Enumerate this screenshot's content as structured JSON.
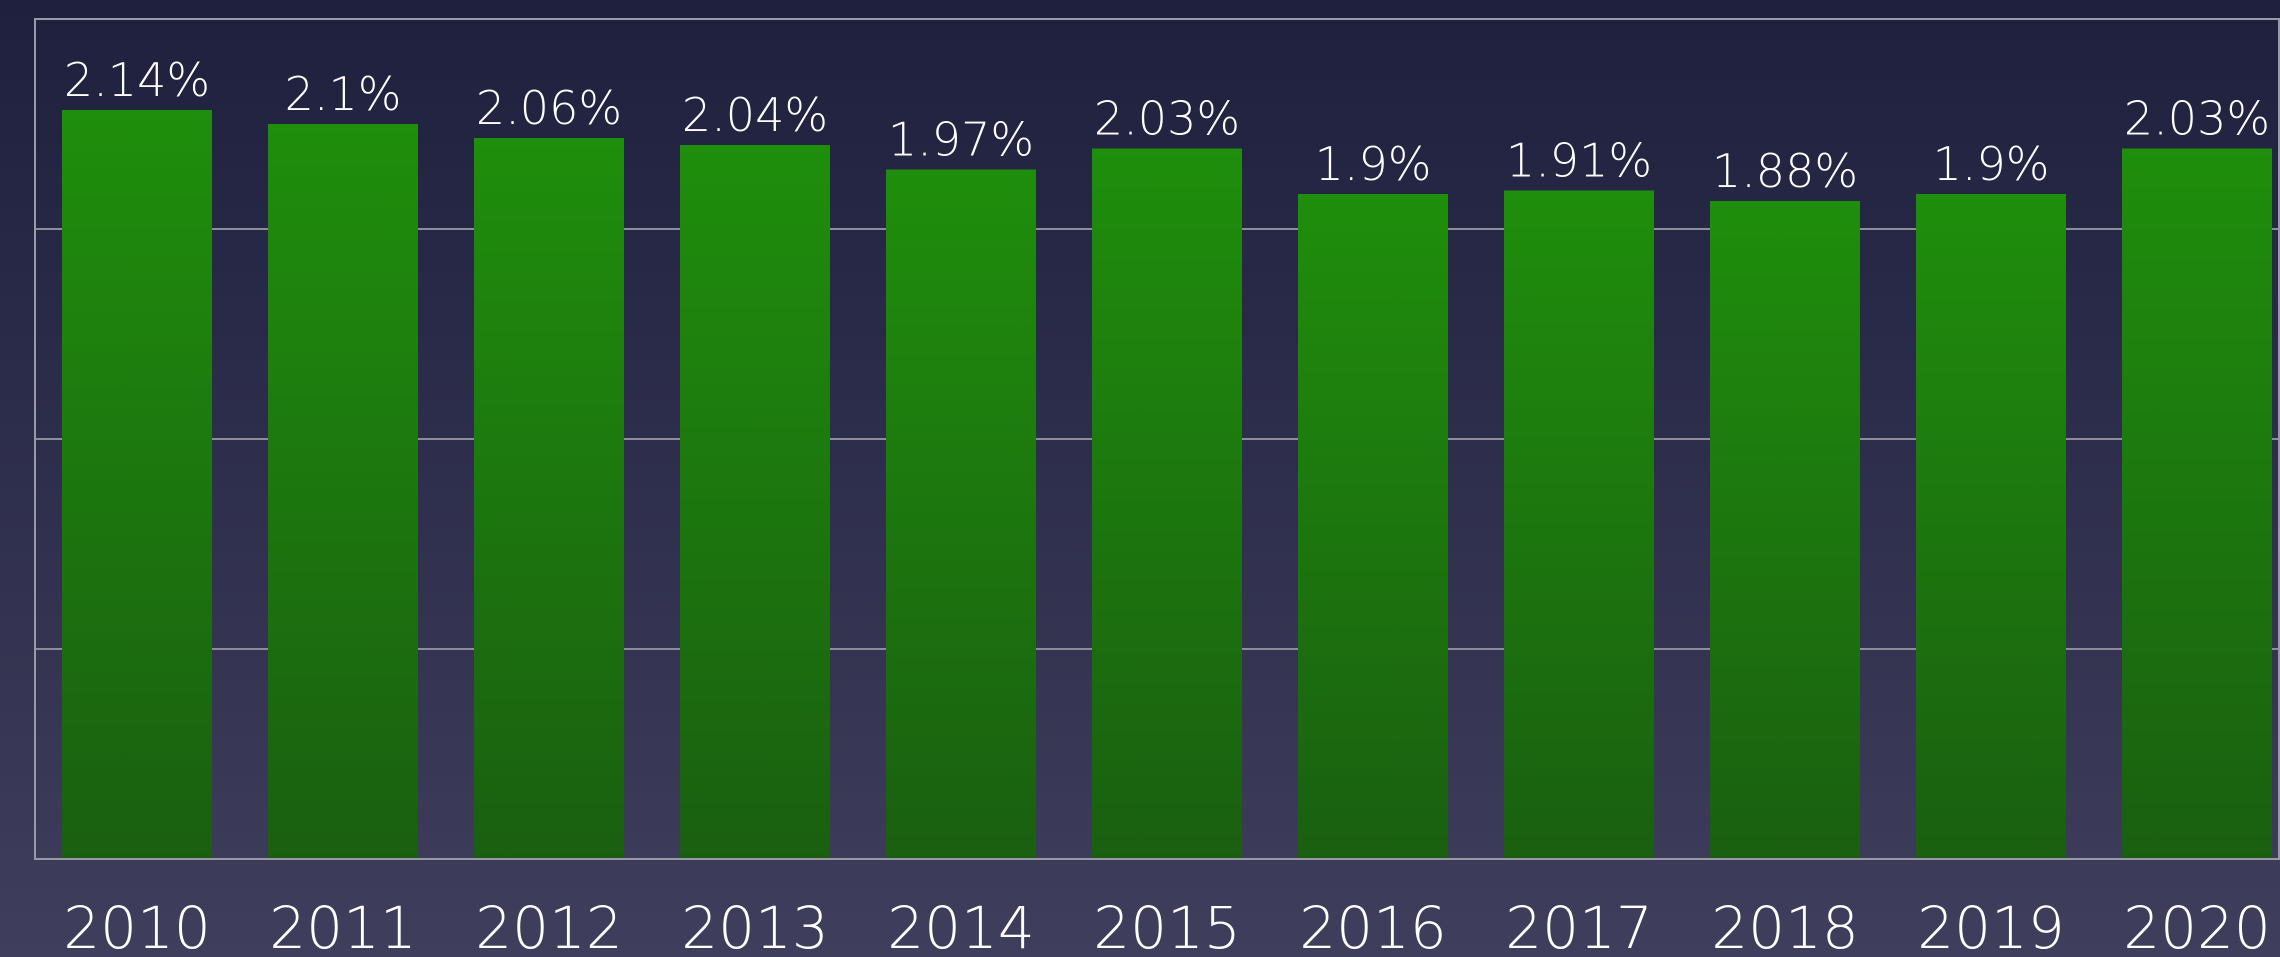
{
  "chart_data": {
    "type": "bar",
    "categories": [
      "2010",
      "2011",
      "2012",
      "2013",
      "2014",
      "2015",
      "2016",
      "2017",
      "2018",
      "2019",
      "2020"
    ],
    "values": [
      2.14,
      2.1,
      2.06,
      2.04,
      1.97,
      2.03,
      1.9,
      1.91,
      1.88,
      1.9,
      2.03
    ],
    "value_labels": [
      "2.14%",
      "2.1%",
      "2.06%",
      "2.04%",
      "1.97%",
      "2.03%",
      "1.9%",
      "1.91%",
      "1.88%",
      "1.9%",
      "2.03%"
    ],
    "color": "#1f8e0c",
    "ylim": [
      0,
      2.4
    ],
    "yticks": [
      0,
      0.6,
      1.2,
      1.8,
      2.4
    ],
    "grid": true
  }
}
